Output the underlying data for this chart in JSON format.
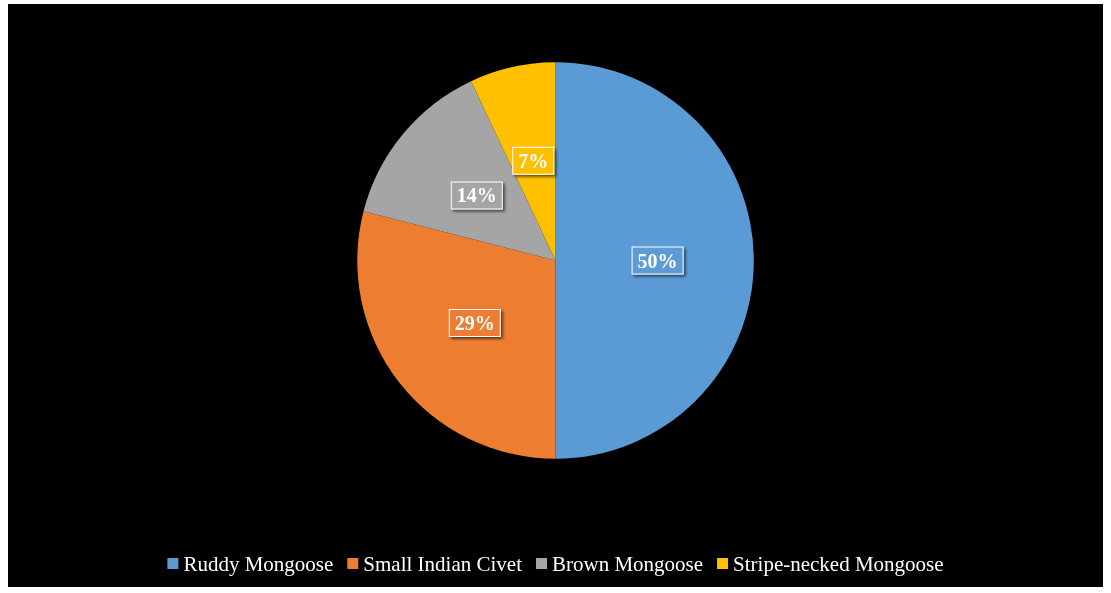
{
  "chart_data": {
    "type": "pie",
    "categories": [
      "Ruddy Mongoose",
      "Small Indian Civet",
      "Brown Mongoose",
      "Stripe-necked Mongoose"
    ],
    "values": [
      50,
      29,
      14,
      7
    ],
    "colors": [
      "#5b9bd5",
      "#ed7d31",
      "#a5a5a5",
      "#ffc000"
    ],
    "value_labels": [
      "50%",
      "29%",
      "14%",
      "7%"
    ],
    "legend": "bottom"
  }
}
